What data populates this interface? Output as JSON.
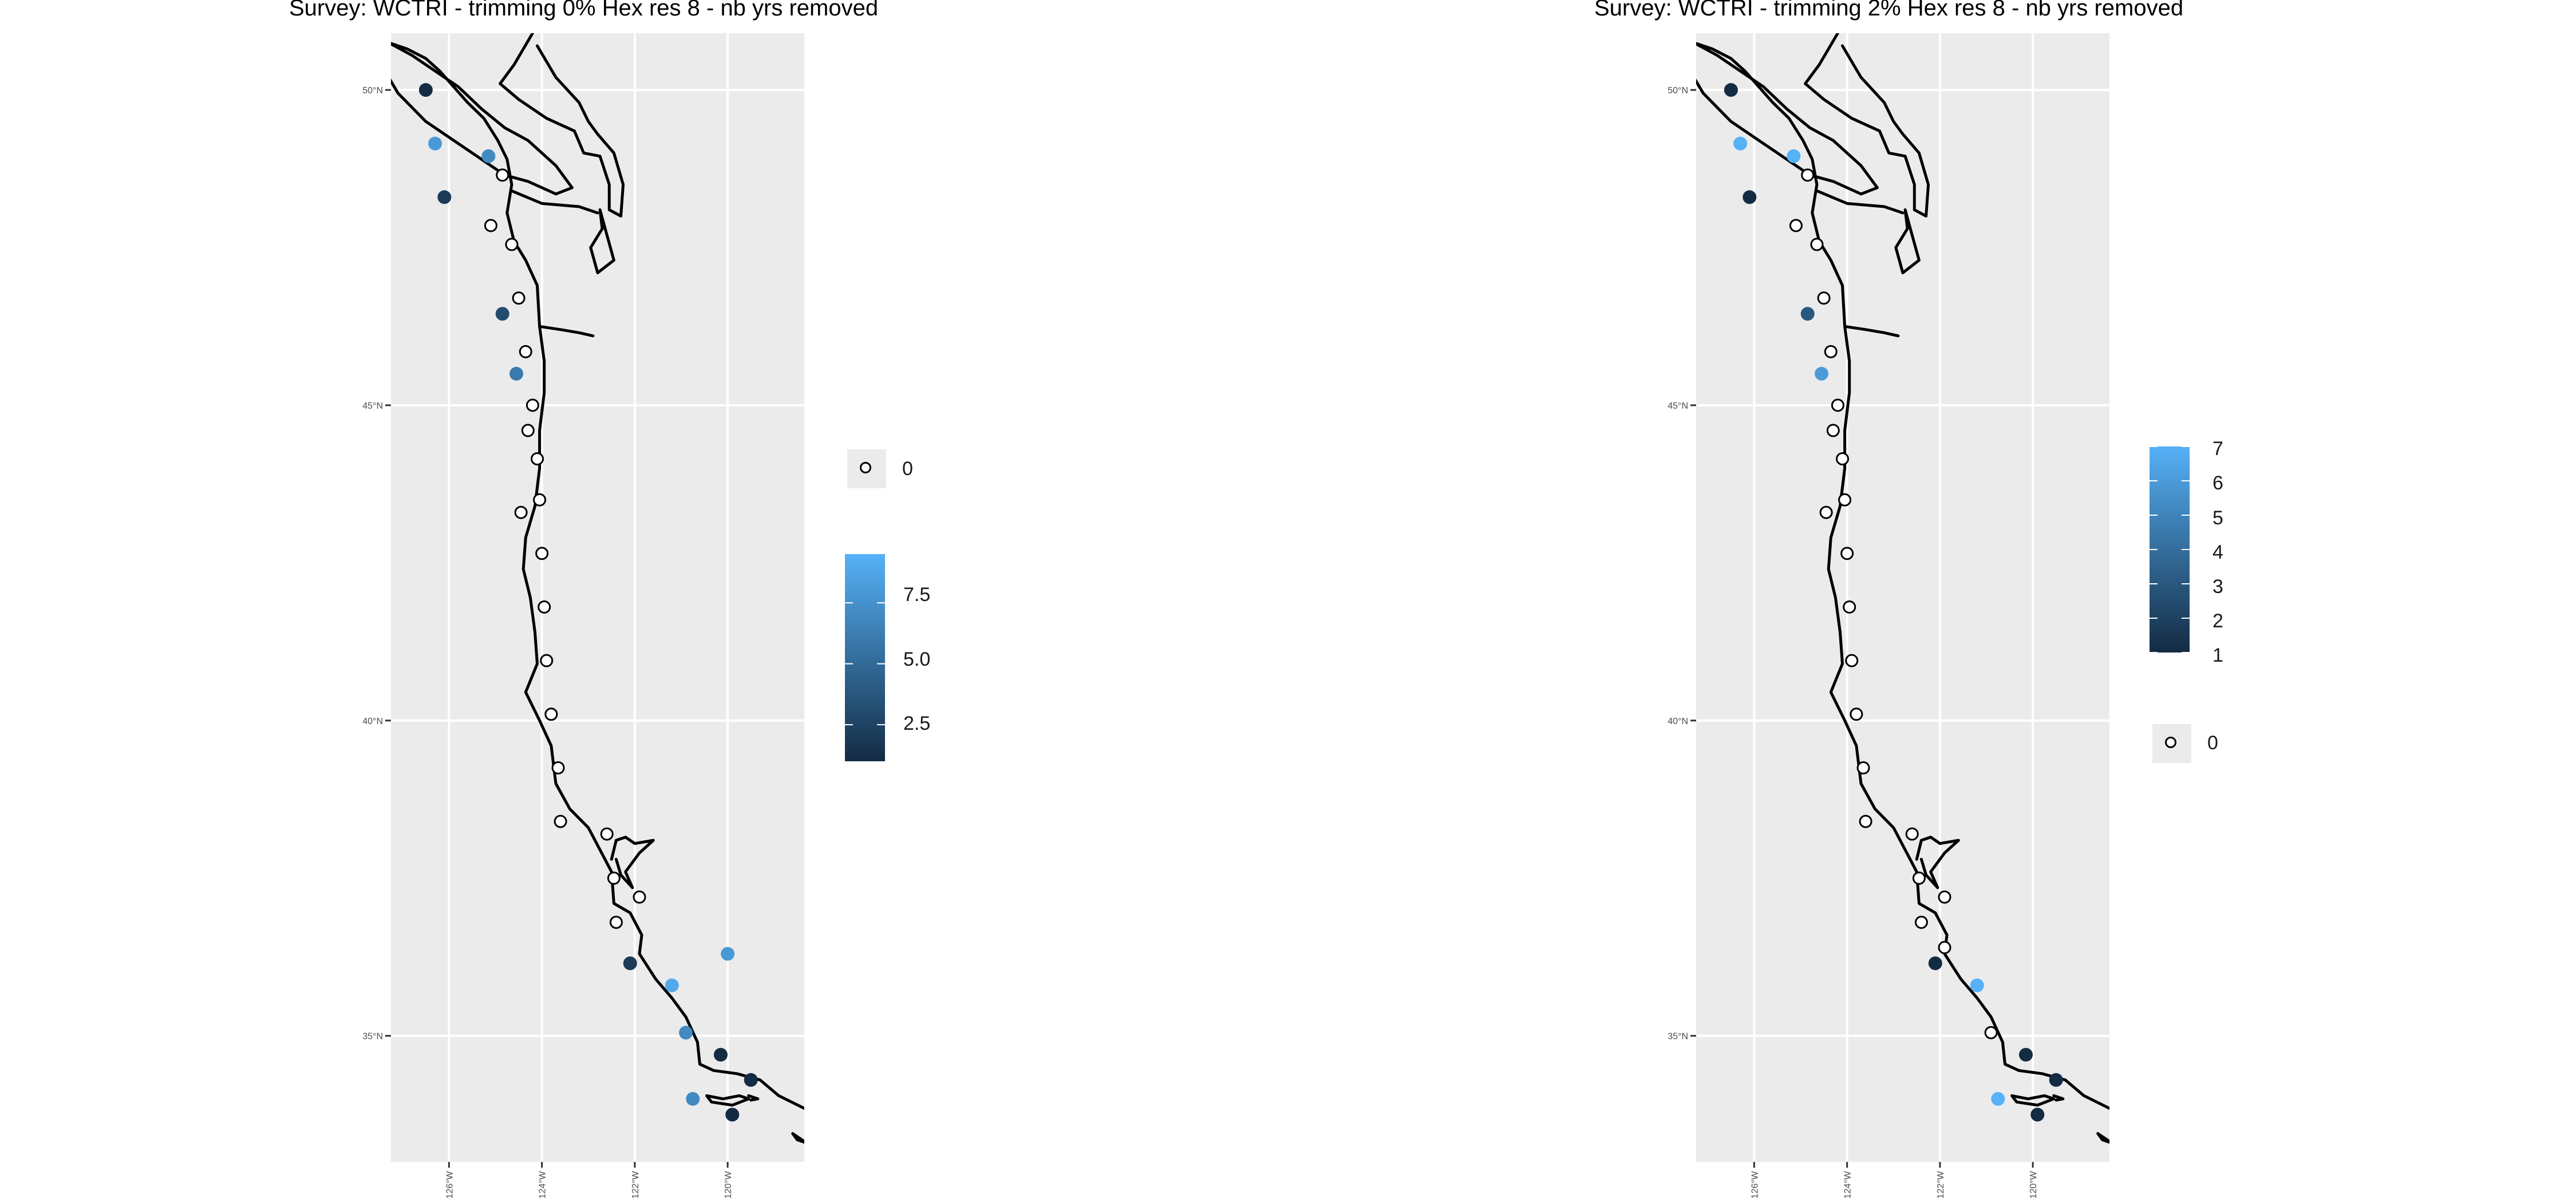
{
  "panels": [
    {
      "title": "Survey: WCTRI - trimming 0% Hex res 8 - nb yrs removed",
      "colorbar": {
        "ticks": [
          "7.5",
          "5.0",
          "2.5"
        ],
        "value_range": [
          1,
          9.5
        ],
        "tick_values": [
          7.5,
          5.0,
          2.5
        ]
      },
      "zero_label": "0",
      "points": [
        {
          "lon": -126.5,
          "lat": 50.0,
          "nb": 1
        },
        {
          "lon": -126.3,
          "lat": 49.15,
          "nb": 8
        },
        {
          "lon": -125.15,
          "lat": 48.95,
          "nb": 7
        },
        {
          "lon": -126.1,
          "lat": 48.3,
          "nb": 2
        },
        {
          "lon": -124.85,
          "lat": 48.65,
          "nb": 0
        },
        {
          "lon": -125.1,
          "lat": 47.85,
          "nb": 0
        },
        {
          "lon": -124.65,
          "lat": 47.55,
          "nb": 0
        },
        {
          "lon": -124.85,
          "lat": 46.45,
          "nb": 3
        },
        {
          "lon": -124.5,
          "lat": 46.7,
          "nb": 0
        },
        {
          "lon": -124.35,
          "lat": 45.85,
          "nb": 0
        },
        {
          "lon": -124.55,
          "lat": 45.5,
          "nb": 6
        },
        {
          "lon": -124.2,
          "lat": 45.0,
          "nb": 0
        },
        {
          "lon": -124.1,
          "lat": 44.15,
          "nb": 0
        },
        {
          "lon": -124.05,
          "lat": 43.5,
          "nb": 0
        },
        {
          "lon": -124.0,
          "lat": 42.65,
          "nb": 0
        },
        {
          "lon": -123.95,
          "lat": 41.8,
          "nb": 0
        },
        {
          "lon": -124.45,
          "lat": 43.3,
          "nb": 0
        },
        {
          "lon": -123.9,
          "lat": 40.95,
          "nb": 0
        },
        {
          "lon": -124.3,
          "lat": 44.6,
          "nb": 0
        },
        {
          "lon": -123.8,
          "lat": 40.1,
          "nb": 0
        },
        {
          "lon": -123.65,
          "lat": 39.25,
          "nb": 0
        },
        {
          "lon": -123.6,
          "lat": 38.4,
          "nb": 0
        },
        {
          "lon": -122.6,
          "lat": 38.2,
          "nb": 0
        },
        {
          "lon": -122.45,
          "lat": 37.5,
          "nb": 0
        },
        {
          "lon": -122.4,
          "lat": 36.8,
          "nb": 0
        },
        {
          "lon": -121.9,
          "lat": 37.2,
          "nb": 0
        },
        {
          "lon": -122.1,
          "lat": 36.15,
          "nb": 2
        },
        {
          "lon": -121.2,
          "lat": 35.8,
          "nb": 9
        },
        {
          "lon": -120.9,
          "lat": 35.05,
          "nb": 7
        },
        {
          "lon": -120.75,
          "lat": 34.0,
          "nb": 7
        },
        {
          "lon": -120.15,
          "lat": 34.7,
          "nb": 1
        },
        {
          "lon": -119.5,
          "lat": 34.3,
          "nb": 1
        },
        {
          "lon": -119.9,
          "lat": 33.75,
          "nb": 1
        },
        {
          "lon": -120.0,
          "lat": 36.3,
          "nb": 8
        }
      ]
    },
    {
      "title": "Survey: WCTRI - trimming 2% Hex res 8 - nb yrs removed",
      "colorbar": {
        "ticks": [
          "7",
          "6",
          "5",
          "4",
          "3",
          "2",
          "1"
        ],
        "value_range": [
          1,
          7
        ],
        "tick_values": [
          7,
          6,
          5,
          4,
          3,
          2,
          1
        ]
      },
      "zero_label": "0",
      "points": [
        {
          "lon": -126.5,
          "lat": 50.0,
          "nb": 1
        },
        {
          "lon": -126.3,
          "lat": 49.15,
          "nb": 7
        },
        {
          "lon": -125.15,
          "lat": 48.95,
          "nb": 7
        },
        {
          "lon": -126.1,
          "lat": 48.3,
          "nb": 1
        },
        {
          "lon": -124.85,
          "lat": 48.65,
          "nb": 0
        },
        {
          "lon": -125.1,
          "lat": 47.85,
          "nb": 0
        },
        {
          "lon": -124.65,
          "lat": 47.55,
          "nb": 0
        },
        {
          "lon": -124.85,
          "lat": 46.45,
          "nb": 3
        },
        {
          "lon": -124.5,
          "lat": 46.7,
          "nb": 0
        },
        {
          "lon": -124.35,
          "lat": 45.85,
          "nb": 0
        },
        {
          "lon": -124.55,
          "lat": 45.5,
          "nb": 6
        },
        {
          "lon": -124.2,
          "lat": 45.0,
          "nb": 0
        },
        {
          "lon": -124.1,
          "lat": 44.15,
          "nb": 0
        },
        {
          "lon": -124.05,
          "lat": 43.5,
          "nb": 0
        },
        {
          "lon": -124.0,
          "lat": 42.65,
          "nb": 0
        },
        {
          "lon": -123.95,
          "lat": 41.8,
          "nb": 0
        },
        {
          "lon": -124.45,
          "lat": 43.3,
          "nb": 0
        },
        {
          "lon": -123.9,
          "lat": 40.95,
          "nb": 0
        },
        {
          "lon": -124.3,
          "lat": 44.6,
          "nb": 0
        },
        {
          "lon": -123.8,
          "lat": 40.1,
          "nb": 0
        },
        {
          "lon": -123.65,
          "lat": 39.25,
          "nb": 0
        },
        {
          "lon": -123.6,
          "lat": 38.4,
          "nb": 0
        },
        {
          "lon": -122.6,
          "lat": 38.2,
          "nb": 0
        },
        {
          "lon": -122.45,
          "lat": 37.5,
          "nb": 0
        },
        {
          "lon": -122.4,
          "lat": 36.8,
          "nb": 0
        },
        {
          "lon": -121.9,
          "lat": 37.2,
          "nb": 0
        },
        {
          "lon": -122.1,
          "lat": 36.15,
          "nb": 1
        },
        {
          "lon": -121.2,
          "lat": 35.8,
          "nb": 7
        },
        {
          "lon": -120.9,
          "lat": 35.05,
          "nb": 0
        },
        {
          "lon": -120.75,
          "lat": 34.0,
          "nb": 7
        },
        {
          "lon": -120.15,
          "lat": 34.7,
          "nb": 1
        },
        {
          "lon": -119.5,
          "lat": 34.3,
          "nb": 1
        },
        {
          "lon": -119.9,
          "lat": 33.75,
          "nb": 1
        },
        {
          "lon": -121.9,
          "lat": 36.4,
          "nb": 0
        }
      ]
    }
  ],
  "axis": {
    "lat_ticks": [
      {
        "v": 50,
        "label": "50°N"
      },
      {
        "v": 45,
        "label": "45°N"
      },
      {
        "v": 40,
        "label": "40°N"
      },
      {
        "v": 35,
        "label": "35°N"
      }
    ],
    "lon_ticks": [
      {
        "v": -126,
        "label": "126°W"
      },
      {
        "v": -124,
        "label": "124°W"
      },
      {
        "v": -122,
        "label": "122°W"
      },
      {
        "v": -120,
        "label": "120°W"
      }
    ],
    "lon_range": [
      -127.25,
      -118.35
    ],
    "lat_range": [
      33.0,
      50.9
    ]
  },
  "colors": {
    "panel_bg": "#ebebeb",
    "grid": "#ffffff",
    "low": "#132B43",
    "high": "#56B1F7",
    "coast": "#000000"
  }
}
